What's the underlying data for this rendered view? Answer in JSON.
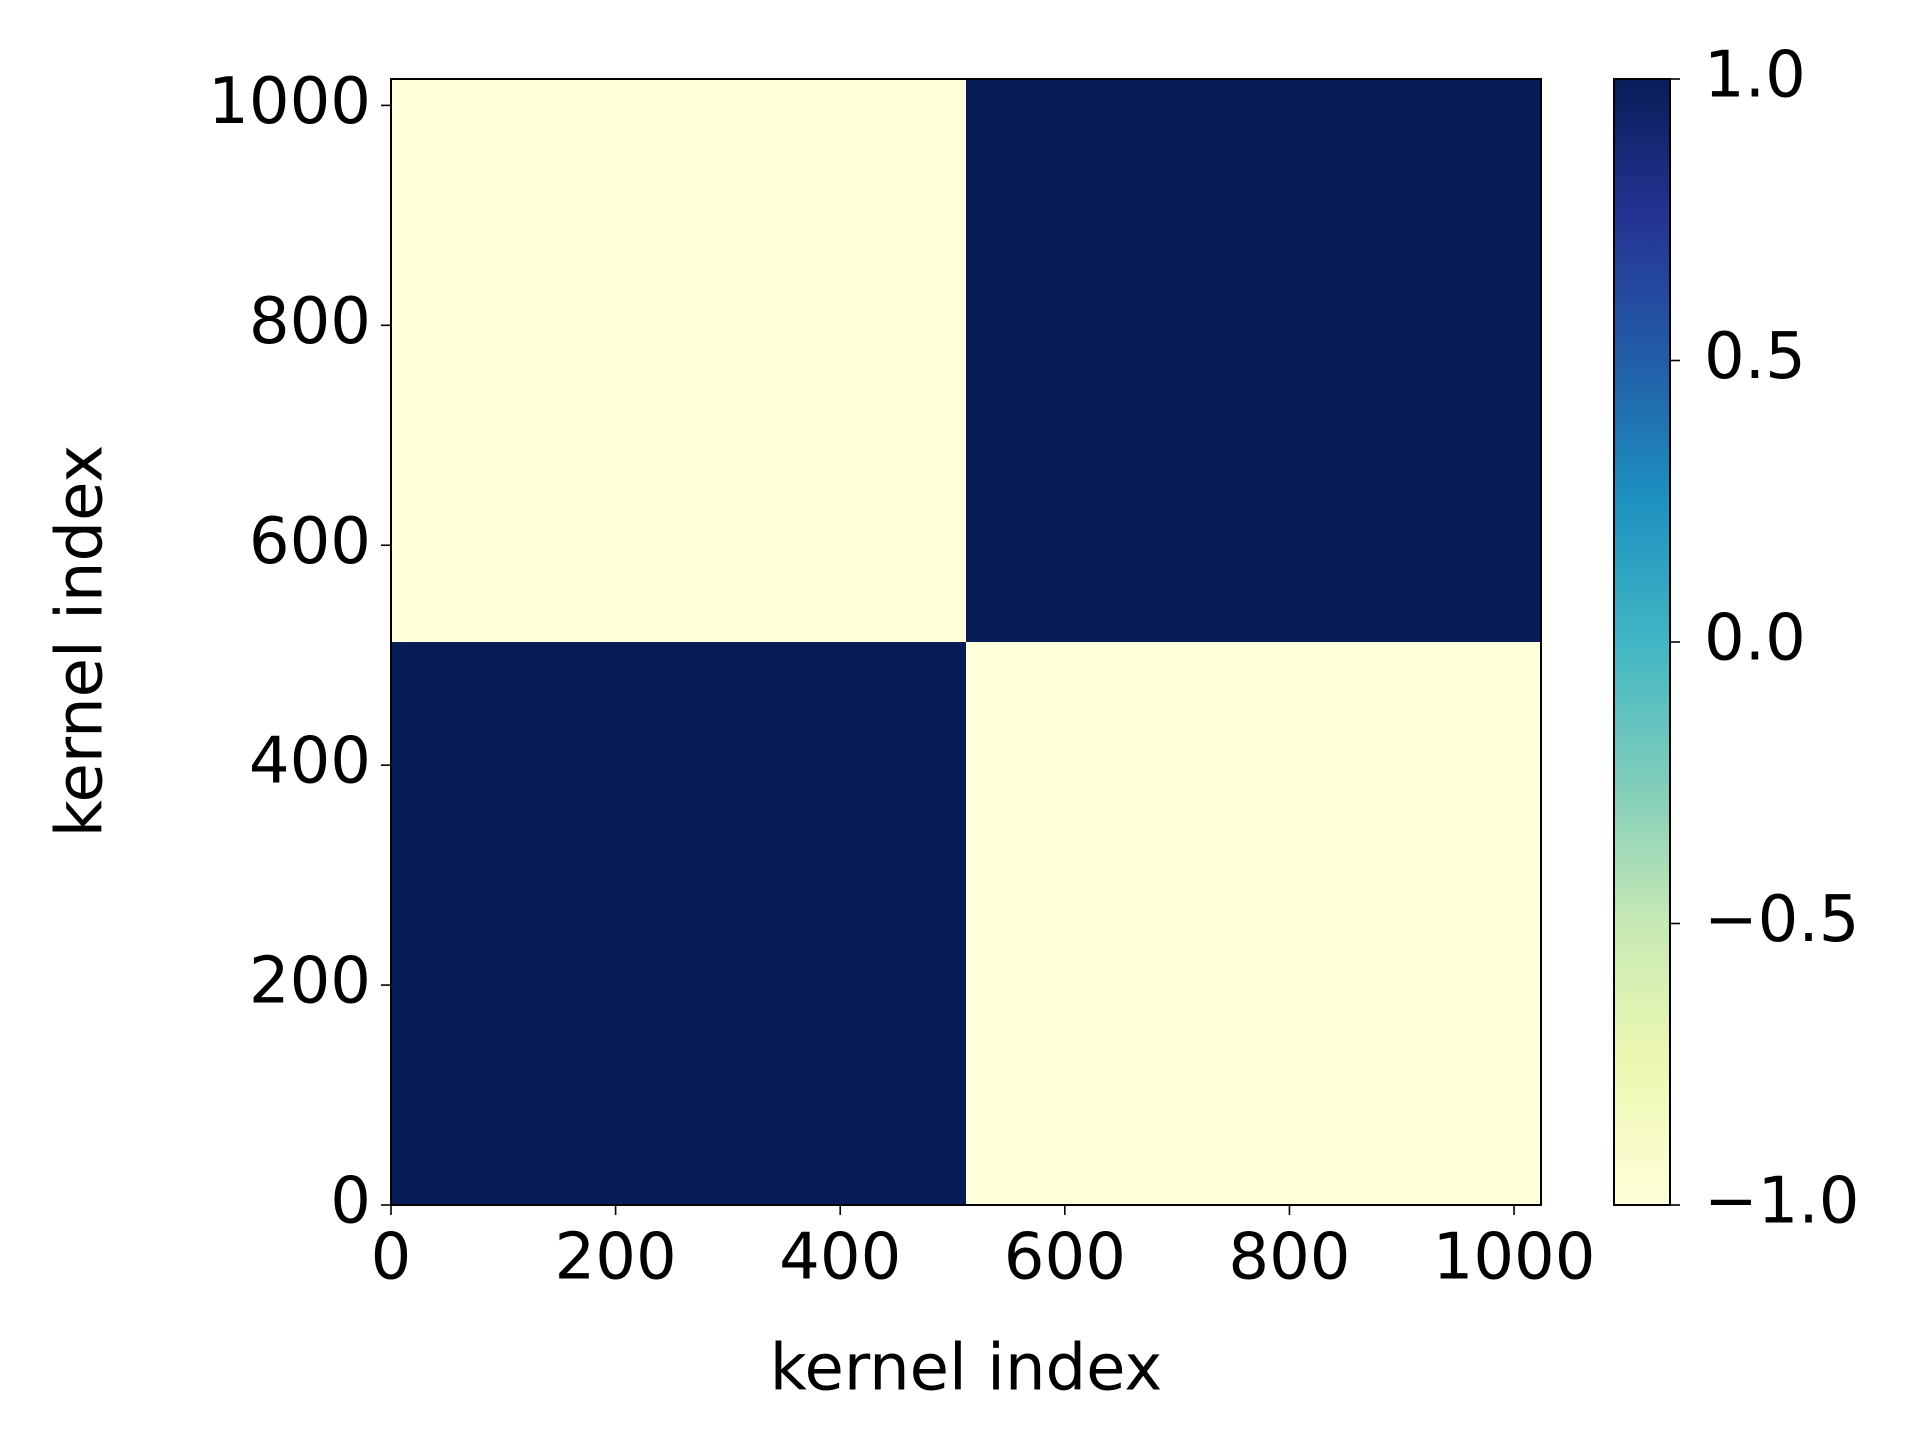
{
  "chart_data": {
    "type": "heatmap",
    "x": [
      0,
      512,
      1024
    ],
    "y": [
      0,
      512,
      1024
    ],
    "z": [
      [
        1,
        -1
      ],
      [
        -1,
        1
      ]
    ],
    "xlim": [
      0,
      1024
    ],
    "ylim": [
      0,
      1024
    ],
    "xticks": [
      0,
      200,
      400,
      600,
      800,
      1000
    ],
    "yticks": [
      0,
      200,
      400,
      600,
      800,
      1000
    ],
    "xlabel": "kernel index",
    "ylabel": "kernel index",
    "colormap": [
      "#ffffd9",
      "#edf8b1",
      "#c7e9b4",
      "#7fcdbb",
      "#41b6c4",
      "#1d91c0",
      "#225ea8",
      "#253494",
      "#081d58"
    ],
    "clim": [
      -1,
      1
    ],
    "cticks": [
      {
        "value": -1,
        "label": "−1.0"
      },
      {
        "value": -0.5,
        "label": "−0.5"
      },
      {
        "value": 0,
        "label": "0.0"
      },
      {
        "value": 0.5,
        "label": "0.5"
      },
      {
        "value": 1,
        "label": "1.0"
      }
    ]
  }
}
